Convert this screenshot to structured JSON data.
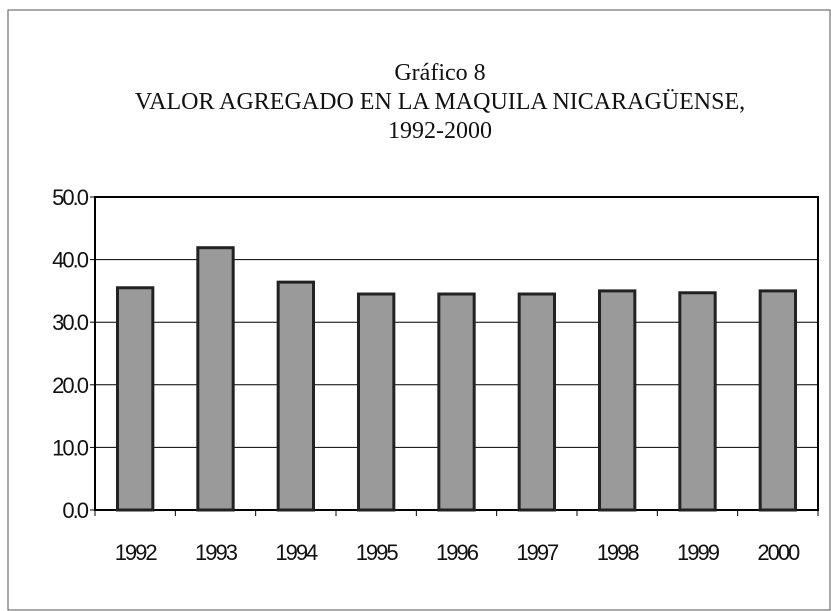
{
  "chart_data": {
    "type": "bar",
    "title": [
      "Gráfico 8",
      "VALOR AGREGADO EN LA MAQUILA NICARAGÜENSE,",
      "1992-2000"
    ],
    "categories": [
      "1992",
      "1993",
      "1994",
      "1995",
      "1996",
      "1997",
      "1998",
      "1999",
      "2000"
    ],
    "values": [
      35.5,
      41.9,
      36.4,
      34.5,
      34.5,
      34.5,
      35.0,
      34.7,
      35.0
    ],
    "color": "#9a9a9a",
    "ylim": [
      0,
      50
    ],
    "yticks": [
      {
        "value": 0,
        "label": "0.0"
      },
      {
        "value": 10,
        "label": "10.0"
      },
      {
        "value": 20,
        "label": "20.0"
      },
      {
        "value": 30,
        "label": "30.0"
      },
      {
        "value": 40,
        "label": "40.0"
      },
      {
        "value": 50,
        "label": "50.0"
      }
    ],
    "grid": true
  }
}
